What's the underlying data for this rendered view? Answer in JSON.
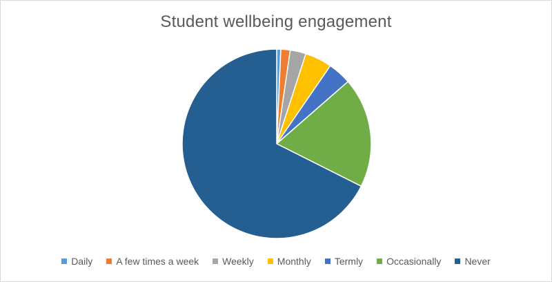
{
  "chart_data": {
    "type": "pie",
    "title": "Student wellbeing engagement",
    "categories": [
      "Daily",
      "A few times a week",
      "Weekly",
      "Monthly",
      "Termly",
      "Occasionally",
      "Never"
    ],
    "values": [
      0.7,
      1.6,
      2.7,
      4.6,
      4.0,
      18.8,
      67.6
    ],
    "colors": [
      "#5B9BD5",
      "#ED7D31",
      "#A5A5A5",
      "#FFC000",
      "#4472C4",
      "#70AD47",
      "#255E91"
    ],
    "legend_position": "bottom"
  }
}
